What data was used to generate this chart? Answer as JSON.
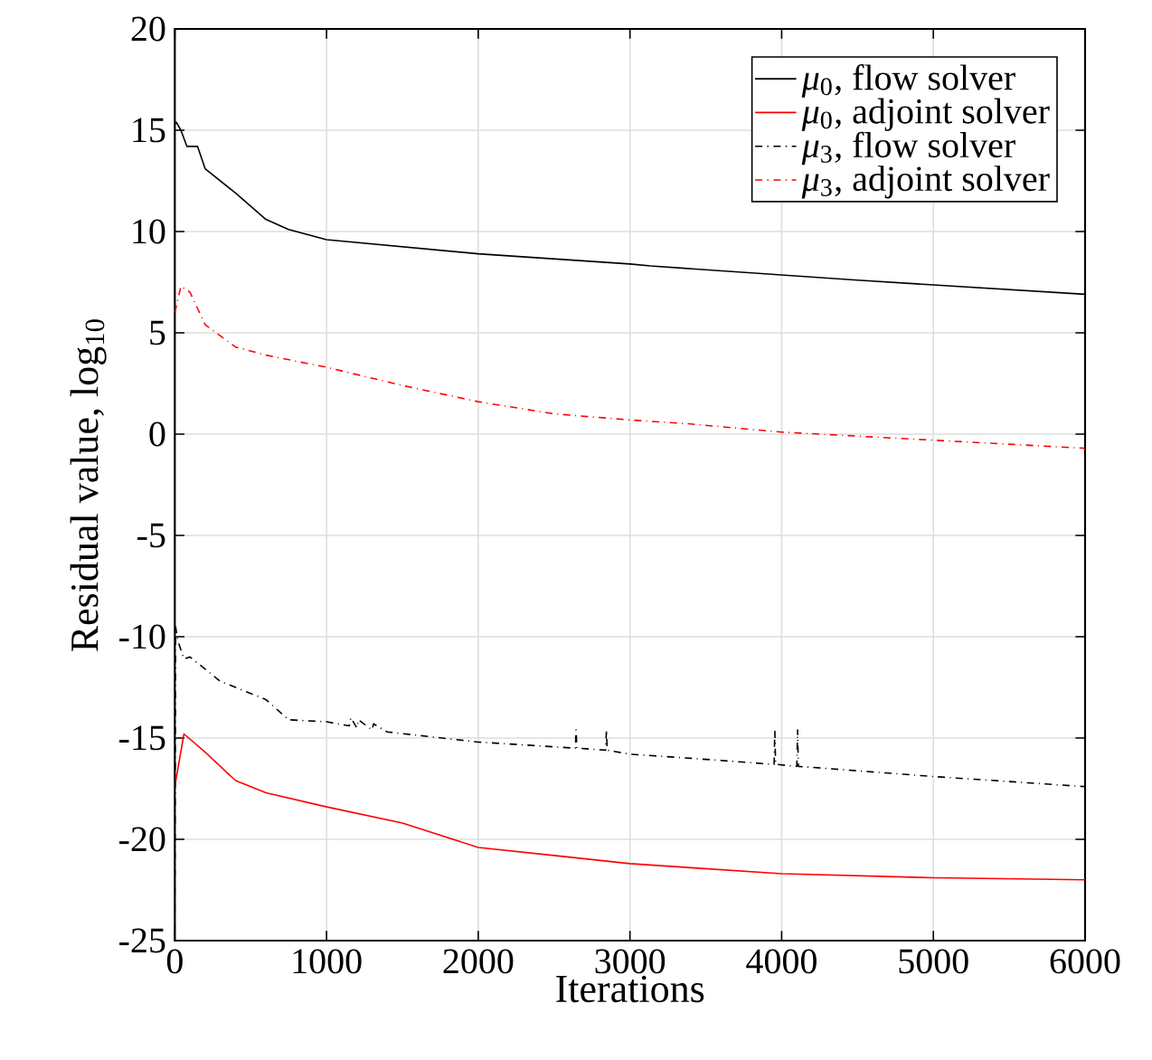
{
  "chart_data": {
    "type": "line",
    "xlabel": "Iterations",
    "ylabel": "Residual value, log$_{10}$",
    "xlim": [
      0,
      6000
    ],
    "ylim": [
      -25,
      20
    ],
    "xticks": [
      0,
      1000,
      2000,
      3000,
      4000,
      5000,
      6000
    ],
    "yticks": [
      -25,
      -20,
      -15,
      -10,
      -5,
      0,
      5,
      10,
      15,
      20
    ],
    "grid": true,
    "legend": "top right",
    "marker": "none",
    "series": [
      {
        "name": "*μ*$_{0}$, flow solver",
        "color": "#000000",
        "line_style": "solid",
        "x": [
          0,
          10,
          40,
          80,
          150,
          200,
          400,
          600,
          750,
          1000,
          2000,
          3000,
          3135,
          4500,
          6000
        ],
        "values": [
          15.3,
          15.4,
          15.0,
          14.2,
          14.2,
          13.1,
          11.9,
          10.6,
          10.1,
          9.6,
          8.9,
          8.4,
          8.3,
          7.6,
          6.9
        ]
      },
      {
        "name": "*μ*$_{0}$, adjoint solver",
        "color": "#ff0000",
        "line_style": "solid",
        "x": [
          0,
          60,
          200,
          400,
          600,
          1000,
          1500,
          2000,
          2500,
          3000,
          3400,
          4000,
          5000,
          6000
        ],
        "values": [
          -17.4,
          -14.8,
          -15.7,
          -17.1,
          -17.7,
          -18.4,
          -19.2,
          -20.4,
          -20.8,
          -21.2,
          -21.4,
          -21.7,
          -21.9,
          -22.0
        ]
      },
      {
        "name": "*μ*$_{3}$, flow solver",
        "color": "#000000",
        "line_style": "dashdot",
        "x": [
          0,
          5,
          20,
          60,
          100,
          300,
          500,
          600,
          750,
          1000,
          1150,
          1160,
          1200,
          1210,
          1300,
          1310,
          1400,
          2000,
          2640,
          2645,
          2650,
          2840,
          2845,
          2850,
          3000,
          3400,
          3950,
          3955,
          3960,
          4100,
          4105,
          4110,
          5000,
          6000
        ],
        "values": [
          -24.5,
          -9.5,
          -10.2,
          -11.1,
          -11.0,
          -12.2,
          -12.8,
          -13.1,
          -14.1,
          -14.2,
          -14.4,
          -14.0,
          -14.5,
          -14.1,
          -14.6,
          -14.3,
          -14.7,
          -15.2,
          -15.5,
          -14.6,
          -15.5,
          -15.6,
          -14.6,
          -15.6,
          -15.8,
          -16.0,
          -16.3,
          -14.6,
          -16.3,
          -16.4,
          -14.6,
          -16.4,
          -16.9,
          -17.4
        ]
      },
      {
        "name": "*μ*$_{3}$, adjoint solver",
        "color": "#ff0000",
        "line_style": "dashdot",
        "x": [
          0,
          40,
          100,
          200,
          400,
          600,
          1000,
          1500,
          2000,
          2500,
          3000,
          3400,
          4000,
          5000,
          6000
        ],
        "values": [
          6.0,
          7.3,
          7.0,
          5.4,
          4.3,
          3.9,
          3.3,
          2.4,
          1.6,
          1.0,
          0.7,
          0.5,
          0.1,
          -0.3,
          -0.7
        ]
      }
    ]
  }
}
